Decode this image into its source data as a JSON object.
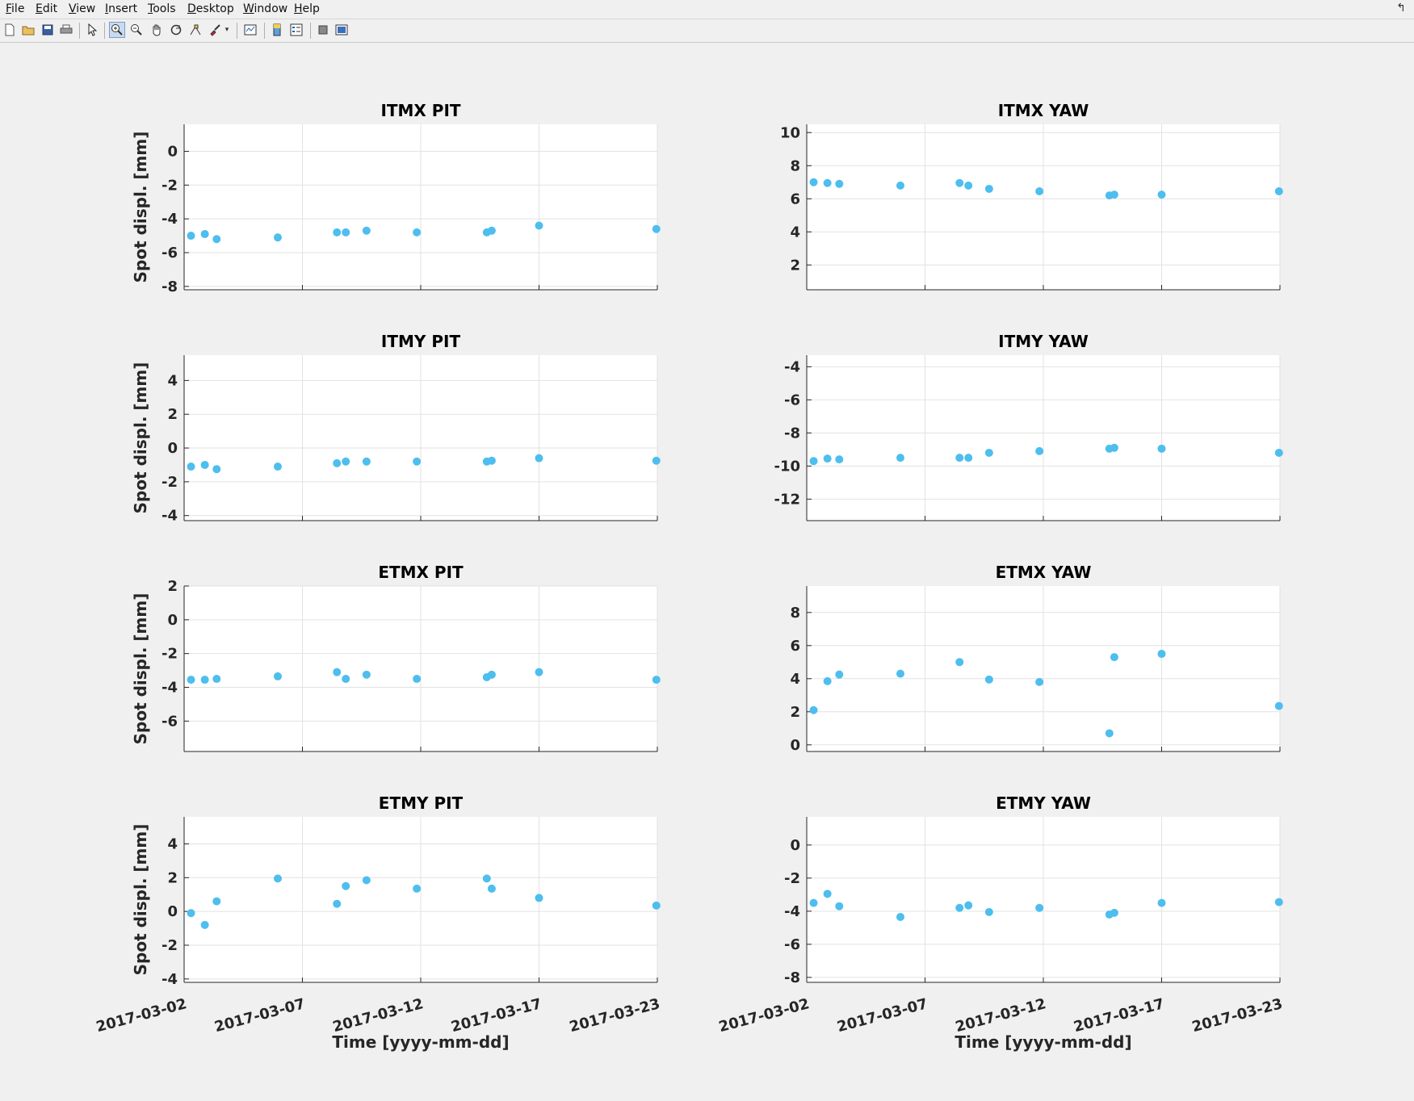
{
  "window": {
    "menu": [
      "File",
      "Edit",
      "View",
      "Insert",
      "Tools",
      "Desktop",
      "Window",
      "Help"
    ],
    "toolbar_icons": [
      "new-figure-icon",
      "open-file-icon",
      "save-icon",
      "print-icon",
      "pointer-icon",
      "zoom-in-icon",
      "zoom-out-icon",
      "pan-icon",
      "rotate-icon",
      "data-cursor-icon",
      "brush-icon",
      "brush-dropdown-icon",
      "link-plot-icon",
      "colorbar-icon",
      "legend-icon",
      "hide-plot-tools-icon",
      "show-plot-tools-icon"
    ],
    "close_glyph": "↰"
  },
  "colors": {
    "marker": "#4DBEEE",
    "grid": "#e2e2e2",
    "axis": "#262626"
  },
  "chart_data": [
    {
      "type": "scatter",
      "title": "ITMX PIT",
      "ylabel": "Spot displ. [mm]",
      "xlabel": "",
      "ylim": [
        -8.2,
        1.6
      ],
      "yticks": [
        -8,
        -6,
        -4,
        -2,
        0
      ],
      "xticks": [
        "2017-03-02",
        "2017-03-07",
        "2017-03-12",
        "2017-03-17",
        "2017-03-23"
      ],
      "x": [
        "2017-03-02 07:00",
        "2017-03-02 21:00",
        "2017-03-03 09:00",
        "2017-03-05 23:00",
        "2017-03-08 11:00",
        "2017-03-08 20:00",
        "2017-03-09 17:00",
        "2017-03-11 20:00",
        "2017-03-14 19:00",
        "2017-03-15 00:00",
        "2017-03-17 00:00",
        "2017-03-21 23:00"
      ],
      "y": [
        -5.0,
        -4.9,
        -5.2,
        -5.1,
        -4.8,
        -4.8,
        -4.7,
        -4.8,
        -4.8,
        -4.7,
        -4.4,
        -4.6
      ],
      "grid": true
    },
    {
      "type": "scatter",
      "title": "ITMX YAW",
      "ylabel": "",
      "xlabel": "",
      "ylim": [
        0.5,
        10.5
      ],
      "yticks": [
        2,
        4,
        6,
        8,
        10
      ],
      "xticks": [
        "2017-03-02",
        "2017-03-07",
        "2017-03-12",
        "2017-03-17",
        "2017-03-23"
      ],
      "x": [
        "2017-03-02 07:00",
        "2017-03-02 21:00",
        "2017-03-03 09:00",
        "2017-03-05 23:00",
        "2017-03-08 11:00",
        "2017-03-08 20:00",
        "2017-03-09 17:00",
        "2017-03-11 20:00",
        "2017-03-14 19:00",
        "2017-03-15 00:00",
        "2017-03-17 00:00",
        "2017-03-21 23:00"
      ],
      "y": [
        7.0,
        6.95,
        6.9,
        6.8,
        6.95,
        6.8,
        6.6,
        6.45,
        6.2,
        6.25,
        6.25,
        6.45
      ],
      "grid": true
    },
    {
      "type": "scatter",
      "title": "ITMY PIT",
      "ylabel": "Spot displ. [mm]",
      "xlabel": "",
      "ylim": [
        -4.3,
        5.5
      ],
      "yticks": [
        -4,
        -2,
        0,
        2,
        4
      ],
      "xticks": [
        "2017-03-02",
        "2017-03-07",
        "2017-03-12",
        "2017-03-17",
        "2017-03-23"
      ],
      "x": [
        "2017-03-02 07:00",
        "2017-03-02 21:00",
        "2017-03-03 09:00",
        "2017-03-05 23:00",
        "2017-03-08 11:00",
        "2017-03-08 20:00",
        "2017-03-09 17:00",
        "2017-03-11 20:00",
        "2017-03-14 19:00",
        "2017-03-15 00:00",
        "2017-03-17 00:00",
        "2017-03-21 23:00"
      ],
      "y": [
        -1.1,
        -1.0,
        -1.25,
        -1.1,
        -0.9,
        -0.8,
        -0.8,
        -0.8,
        -0.8,
        -0.75,
        -0.6,
        -0.75
      ],
      "grid": true
    },
    {
      "type": "scatter",
      "title": "ITMY YAW",
      "ylabel": "",
      "xlabel": "",
      "ylim": [
        -13.3,
        -3.3
      ],
      "yticks": [
        -12,
        -10,
        -8,
        -6,
        -4
      ],
      "xticks": [
        "2017-03-02",
        "2017-03-07",
        "2017-03-12",
        "2017-03-17",
        "2017-03-23"
      ],
      "x": [
        "2017-03-02 07:00",
        "2017-03-02 21:00",
        "2017-03-03 09:00",
        "2017-03-05 23:00",
        "2017-03-08 11:00",
        "2017-03-08 20:00",
        "2017-03-09 17:00",
        "2017-03-11 20:00",
        "2017-03-14 19:00",
        "2017-03-15 00:00",
        "2017-03-17 00:00",
        "2017-03-21 23:00"
      ],
      "y": [
        -9.7,
        -9.55,
        -9.6,
        -9.5,
        -9.5,
        -9.5,
        -9.2,
        -9.1,
        -8.95,
        -8.9,
        -8.95,
        -9.2
      ],
      "grid": true
    },
    {
      "type": "scatter",
      "title": "ETMX PIT",
      "ylabel": "Spot displ. [mm]",
      "xlabel": "",
      "ylim": [
        -7.8,
        2.0
      ],
      "yticks": [
        -6,
        -4,
        -2,
        0,
        2
      ],
      "xticks": [
        "2017-03-02",
        "2017-03-07",
        "2017-03-12",
        "2017-03-17",
        "2017-03-23"
      ],
      "x": [
        "2017-03-02 07:00",
        "2017-03-02 21:00",
        "2017-03-03 09:00",
        "2017-03-05 23:00",
        "2017-03-08 11:00",
        "2017-03-08 20:00",
        "2017-03-09 17:00",
        "2017-03-11 20:00",
        "2017-03-14 19:00",
        "2017-03-15 00:00",
        "2017-03-17 00:00",
        "2017-03-21 23:00"
      ],
      "y": [
        -3.55,
        -3.55,
        -3.5,
        -3.35,
        -3.1,
        -3.5,
        -3.25,
        -3.5,
        -3.4,
        -3.25,
        -3.1,
        -3.55
      ],
      "grid": true
    },
    {
      "type": "scatter",
      "title": "ETMX YAW",
      "ylabel": "",
      "xlabel": "",
      "ylim": [
        -0.4,
        9.6
      ],
      "yticks": [
        0,
        2,
        4,
        6,
        8
      ],
      "xticks": [
        "2017-03-02",
        "2017-03-07",
        "2017-03-12",
        "2017-03-17",
        "2017-03-23"
      ],
      "x": [
        "2017-03-02 07:00",
        "2017-03-02 21:00",
        "2017-03-03 09:00",
        "2017-03-05 23:00",
        "2017-03-08 11:00",
        "2017-03-09 17:00",
        "2017-03-11 20:00",
        "2017-03-14 19:00",
        "2017-03-15 00:00",
        "2017-03-17 00:00",
        "2017-03-21 23:00"
      ],
      "y": [
        2.1,
        3.85,
        4.25,
        4.3,
        5.0,
        3.95,
        3.8,
        0.7,
        5.3,
        5.5,
        2.35
      ],
      "grid": true
    },
    {
      "type": "scatter",
      "title": "ETMY PIT",
      "ylabel": "Spot displ. [mm]",
      "xlabel": "Time [yyyy-mm-dd]",
      "ylim": [
        -4.2,
        5.6
      ],
      "yticks": [
        -4,
        -2,
        0,
        2,
        4
      ],
      "xticks": [
        "2017-03-02",
        "2017-03-07",
        "2017-03-12",
        "2017-03-17",
        "2017-03-23"
      ],
      "x": [
        "2017-03-02 07:00",
        "2017-03-02 21:00",
        "2017-03-03 09:00",
        "2017-03-05 23:00",
        "2017-03-08 11:00",
        "2017-03-08 20:00",
        "2017-03-09 17:00",
        "2017-03-11 20:00",
        "2017-03-14 19:00",
        "2017-03-15 00:00",
        "2017-03-17 00:00",
        "2017-03-21 23:00"
      ],
      "y": [
        -0.1,
        -0.8,
        0.6,
        1.95,
        0.45,
        1.5,
        1.85,
        1.35,
        1.95,
        1.35,
        0.8,
        0.35
      ],
      "grid": true
    },
    {
      "type": "scatter",
      "title": "ETMY YAW",
      "ylabel": "",
      "xlabel": "Time [yyyy-mm-dd]",
      "ylim": [
        -8.3,
        1.7
      ],
      "yticks": [
        -8,
        -6,
        -4,
        -2,
        0
      ],
      "xticks": [
        "2017-03-02",
        "2017-03-07",
        "2017-03-12",
        "2017-03-17",
        "2017-03-23"
      ],
      "x": [
        "2017-03-02 07:00",
        "2017-03-02 21:00",
        "2017-03-03 09:00",
        "2017-03-05 23:00",
        "2017-03-08 11:00",
        "2017-03-08 20:00",
        "2017-03-09 17:00",
        "2017-03-11 20:00",
        "2017-03-14 19:00",
        "2017-03-15 00:00",
        "2017-03-17 00:00",
        "2017-03-21 23:00"
      ],
      "y": [
        -3.5,
        -2.95,
        -3.7,
        -4.35,
        -3.8,
        -3.65,
        -4.05,
        -3.8,
        -4.2,
        -4.1,
        -3.5,
        -3.45
      ],
      "grid": true
    }
  ]
}
